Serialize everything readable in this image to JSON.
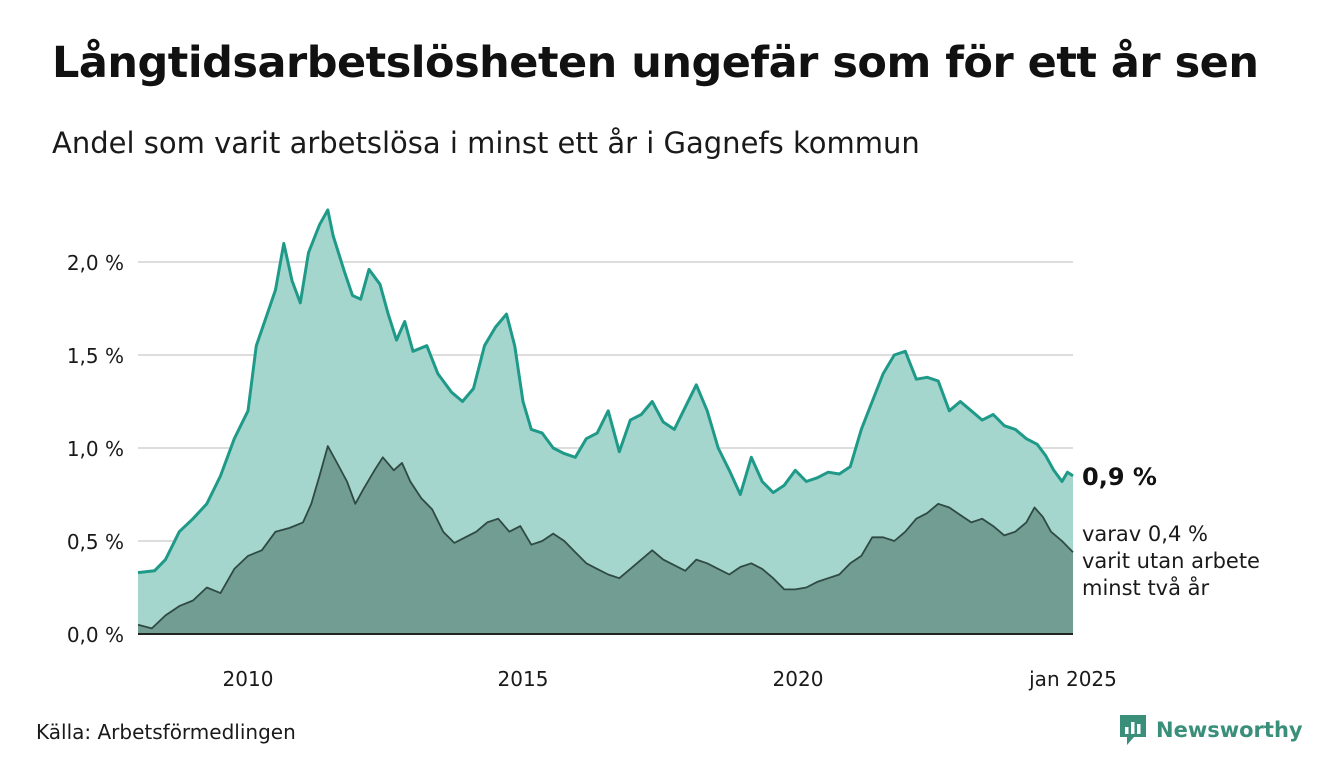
{
  "title": "Långtidsarbetslösheten ungefär som för ett år sen",
  "subtitle": "Andel som varit arbetslösa i minst ett år i Gagnefs kommun",
  "source": "Källa: Arbetsförmedlingen",
  "logo": {
    "text": "Newsworthy",
    "icon": "newsworthy-logo-icon"
  },
  "colors": {
    "upper_fill": "#a5d6cd",
    "upper_line": "#1f9a89",
    "lower_fill": "#719d93",
    "lower_line": "#2f4a43",
    "grid": "#dddddd",
    "axis": "#222222",
    "logo": "#3a8f7a"
  },
  "chart_data": {
    "type": "area",
    "title": "Långtidsarbetslösheten ungefär som för ett år sen",
    "subtitle": "Andel som varit arbetslösa i minst ett år i Gagnefs kommun",
    "xlabel": "",
    "ylabel": "",
    "xlim": [
      2008.0,
      2025.0
    ],
    "ylim": [
      0.0,
      2.3
    ],
    "x_ticks": [
      {
        "x": 2010,
        "label": "2010"
      },
      {
        "x": 2015,
        "label": "2015"
      },
      {
        "x": 2020,
        "label": "2020"
      },
      {
        "x": 2025,
        "label": "jan 2025"
      }
    ],
    "y_ticks": [
      {
        "y": 0.0,
        "label": "0,0 %"
      },
      {
        "y": 0.5,
        "label": "0,5 %"
      },
      {
        "y": 1.0,
        "label": "1,0 %"
      },
      {
        "y": 1.5,
        "label": "1,5 %"
      },
      {
        "y": 2.0,
        "label": "2,0 %"
      }
    ],
    "grid": true,
    "legend": "none",
    "series": [
      {
        "unit": "%",
        "points": [
          [
            2008.0,
            0.33
          ],
          [
            2008.3,
            0.34
          ],
          [
            2008.5,
            0.4
          ],
          [
            2008.75,
            0.55
          ],
          [
            2009.0,
            0.62
          ],
          [
            2009.25,
            0.7
          ],
          [
            2009.5,
            0.85
          ],
          [
            2009.75,
            1.05
          ],
          [
            2010.0,
            1.2
          ],
          [
            2010.15,
            1.55
          ],
          [
            2010.35,
            1.72
          ],
          [
            2010.5,
            1.85
          ],
          [
            2010.65,
            2.1
          ],
          [
            2010.8,
            1.9
          ],
          [
            2010.95,
            1.78
          ],
          [
            2011.1,
            2.05
          ],
          [
            2011.3,
            2.2
          ],
          [
            2011.45,
            2.28
          ],
          [
            2011.55,
            2.14
          ],
          [
            2011.75,
            1.95
          ],
          [
            2011.9,
            1.82
          ],
          [
            2012.05,
            1.8
          ],
          [
            2012.2,
            1.96
          ],
          [
            2012.4,
            1.88
          ],
          [
            2012.55,
            1.72
          ],
          [
            2012.7,
            1.58
          ],
          [
            2012.85,
            1.68
          ],
          [
            2013.0,
            1.52
          ],
          [
            2013.25,
            1.55
          ],
          [
            2013.45,
            1.4
          ],
          [
            2013.7,
            1.3
          ],
          [
            2013.9,
            1.25
          ],
          [
            2014.1,
            1.32
          ],
          [
            2014.3,
            1.55
          ],
          [
            2014.5,
            1.65
          ],
          [
            2014.7,
            1.72
          ],
          [
            2014.85,
            1.55
          ],
          [
            2015.0,
            1.25
          ],
          [
            2015.15,
            1.1
          ],
          [
            2015.35,
            1.08
          ],
          [
            2015.55,
            1.0
          ],
          [
            2015.75,
            0.97
          ],
          [
            2015.95,
            0.95
          ],
          [
            2016.15,
            1.05
          ],
          [
            2016.35,
            1.08
          ],
          [
            2016.55,
            1.2
          ],
          [
            2016.75,
            0.98
          ],
          [
            2016.95,
            1.15
          ],
          [
            2017.15,
            1.18
          ],
          [
            2017.35,
            1.25
          ],
          [
            2017.55,
            1.14
          ],
          [
            2017.75,
            1.1
          ],
          [
            2017.95,
            1.22
          ],
          [
            2018.15,
            1.34
          ],
          [
            2018.35,
            1.2
          ],
          [
            2018.55,
            1.0
          ],
          [
            2018.75,
            0.88
          ],
          [
            2018.95,
            0.75
          ],
          [
            2019.15,
            0.95
          ],
          [
            2019.35,
            0.82
          ],
          [
            2019.55,
            0.76
          ],
          [
            2019.75,
            0.8
          ],
          [
            2019.95,
            0.88
          ],
          [
            2020.15,
            0.82
          ],
          [
            2020.35,
            0.84
          ],
          [
            2020.55,
            0.87
          ],
          [
            2020.75,
            0.86
          ],
          [
            2020.95,
            0.9
          ],
          [
            2021.15,
            1.1
          ],
          [
            2021.35,
            1.25
          ],
          [
            2021.55,
            1.4
          ],
          [
            2021.75,
            1.5
          ],
          [
            2021.95,
            1.52
          ],
          [
            2022.15,
            1.37
          ],
          [
            2022.35,
            1.38
          ],
          [
            2022.55,
            1.36
          ],
          [
            2022.75,
            1.2
          ],
          [
            2022.95,
            1.25
          ],
          [
            2023.15,
            1.2
          ],
          [
            2023.35,
            1.15
          ],
          [
            2023.55,
            1.18
          ],
          [
            2023.75,
            1.12
          ],
          [
            2023.95,
            1.1
          ],
          [
            2024.15,
            1.05
          ],
          [
            2024.35,
            1.02
          ],
          [
            2024.5,
            0.96
          ],
          [
            2024.65,
            0.88
          ],
          [
            2024.8,
            0.82
          ],
          [
            2024.9,
            0.87
          ],
          [
            2025.0,
            0.85
          ]
        ],
        "end_label": "0,9 %"
      },
      {
        "unit": "%",
        "points": [
          [
            2008.0,
            0.05
          ],
          [
            2008.25,
            0.03
          ],
          [
            2008.5,
            0.1
          ],
          [
            2008.75,
            0.15
          ],
          [
            2009.0,
            0.18
          ],
          [
            2009.25,
            0.25
          ],
          [
            2009.5,
            0.22
          ],
          [
            2009.75,
            0.35
          ],
          [
            2010.0,
            0.42
          ],
          [
            2010.25,
            0.45
          ],
          [
            2010.5,
            0.55
          ],
          [
            2010.75,
            0.57
          ],
          [
            2011.0,
            0.6
          ],
          [
            2011.15,
            0.7
          ],
          [
            2011.3,
            0.85
          ],
          [
            2011.45,
            1.01
          ],
          [
            2011.6,
            0.93
          ],
          [
            2011.8,
            0.82
          ],
          [
            2011.95,
            0.7
          ],
          [
            2012.1,
            0.78
          ],
          [
            2012.3,
            0.88
          ],
          [
            2012.45,
            0.95
          ],
          [
            2012.65,
            0.88
          ],
          [
            2012.8,
            0.92
          ],
          [
            2012.95,
            0.82
          ],
          [
            2013.15,
            0.73
          ],
          [
            2013.35,
            0.67
          ],
          [
            2013.55,
            0.55
          ],
          [
            2013.75,
            0.49
          ],
          [
            2013.95,
            0.52
          ],
          [
            2014.15,
            0.55
          ],
          [
            2014.35,
            0.6
          ],
          [
            2014.55,
            0.62
          ],
          [
            2014.75,
            0.55
          ],
          [
            2014.95,
            0.58
          ],
          [
            2015.15,
            0.48
          ],
          [
            2015.35,
            0.5
          ],
          [
            2015.55,
            0.54
          ],
          [
            2015.75,
            0.5
          ],
          [
            2015.95,
            0.44
          ],
          [
            2016.15,
            0.38
          ],
          [
            2016.35,
            0.35
          ],
          [
            2016.55,
            0.32
          ],
          [
            2016.75,
            0.3
          ],
          [
            2016.95,
            0.35
          ],
          [
            2017.15,
            0.4
          ],
          [
            2017.35,
            0.45
          ],
          [
            2017.55,
            0.4
          ],
          [
            2017.75,
            0.37
          ],
          [
            2017.95,
            0.34
          ],
          [
            2018.15,
            0.4
          ],
          [
            2018.35,
            0.38
          ],
          [
            2018.55,
            0.35
          ],
          [
            2018.75,
            0.32
          ],
          [
            2018.95,
            0.36
          ],
          [
            2019.15,
            0.38
          ],
          [
            2019.35,
            0.35
          ],
          [
            2019.55,
            0.3
          ],
          [
            2019.75,
            0.24
          ],
          [
            2019.95,
            0.24
          ],
          [
            2020.15,
            0.25
          ],
          [
            2020.35,
            0.28
          ],
          [
            2020.55,
            0.3
          ],
          [
            2020.75,
            0.32
          ],
          [
            2020.95,
            0.38
          ],
          [
            2021.15,
            0.42
          ],
          [
            2021.35,
            0.52
          ],
          [
            2021.55,
            0.52
          ],
          [
            2021.75,
            0.5
          ],
          [
            2021.95,
            0.55
          ],
          [
            2022.15,
            0.62
          ],
          [
            2022.35,
            0.65
          ],
          [
            2022.55,
            0.7
          ],
          [
            2022.75,
            0.68
          ],
          [
            2022.95,
            0.64
          ],
          [
            2023.15,
            0.6
          ],
          [
            2023.35,
            0.62
          ],
          [
            2023.55,
            0.58
          ],
          [
            2023.75,
            0.53
          ],
          [
            2023.95,
            0.55
          ],
          [
            2024.15,
            0.6
          ],
          [
            2024.3,
            0.68
          ],
          [
            2024.45,
            0.63
          ],
          [
            2024.6,
            0.55
          ],
          [
            2024.8,
            0.5
          ],
          [
            2025.0,
            0.44
          ]
        ],
        "end_label": "varav 0,4 % varit utan arbete minst två år",
        "end_label_lines": [
          "varav 0,4 %",
          "varit utan arbete",
          "minst två år"
        ]
      }
    ]
  }
}
